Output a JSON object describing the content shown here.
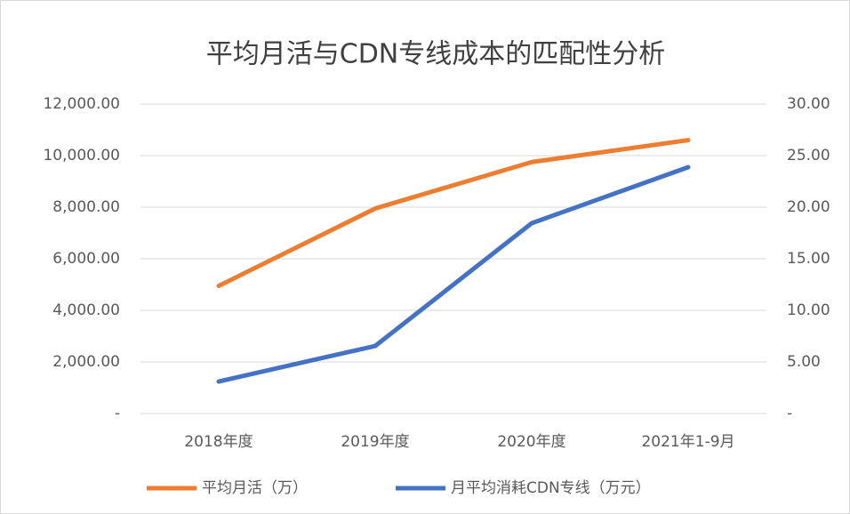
{
  "chart_data": {
    "type": "line",
    "title": "平均月活与CDN专线成本的匹配性分析",
    "categories": [
      "2018年度",
      "2019年度",
      "2020年度",
      "2021年1-9月"
    ],
    "series": [
      {
        "name": "平均月活（万）",
        "color": "#ed7d31",
        "values": [
          4950,
          7950,
          9750,
          10600
        ]
      },
      {
        "name": "月平均消耗CDN专线（万元）",
        "color": "#4472c4",
        "values": [
          3.1,
          6.55,
          18.45,
          23.88
        ],
        "axis": "y2"
      }
    ],
    "ylim": [
      0,
      12000
    ],
    "yticks": [
      {
        "value": 0,
        "label": "-"
      },
      {
        "value": 2000,
        "label": "2,000.00"
      },
      {
        "value": 4000,
        "label": "4,000.00"
      },
      {
        "value": 6000,
        "label": "6,000.00"
      },
      {
        "value": 8000,
        "label": "8,000.00"
      },
      {
        "value": 10000,
        "label": "10,000.00"
      },
      {
        "value": 12000,
        "label": "12,000.00"
      }
    ],
    "y2lim": [
      0,
      30
    ],
    "y2ticks": [
      {
        "value": 0,
        "label": "-"
      },
      {
        "value": 5,
        "label": "5.00"
      },
      {
        "value": 10,
        "label": "10.00"
      },
      {
        "value": 15,
        "label": "15.00"
      },
      {
        "value": 20,
        "label": "20.00"
      },
      {
        "value": 25,
        "label": "25.00"
      },
      {
        "value": 30,
        "label": "30.00"
      }
    ],
    "grid": true,
    "legend": "bottom"
  }
}
